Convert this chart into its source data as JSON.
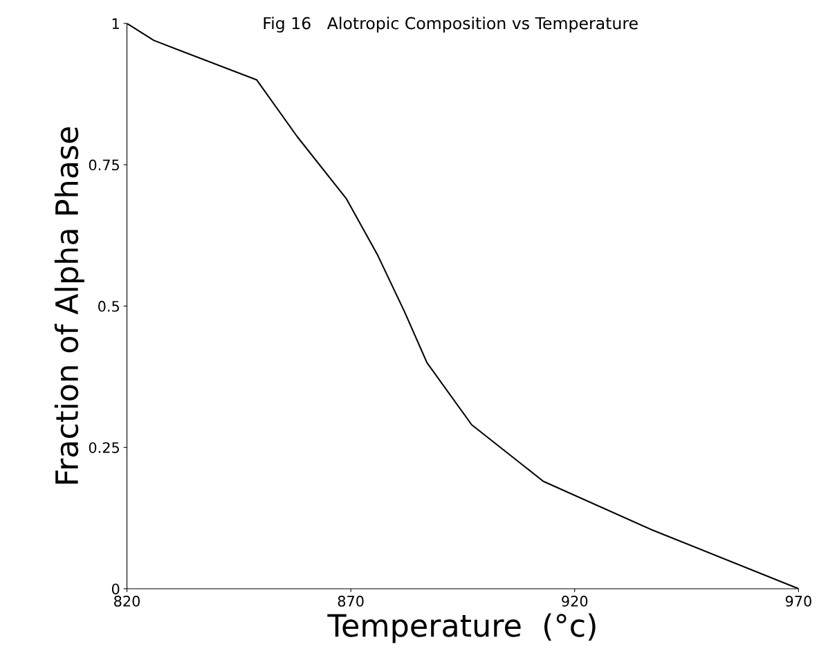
{
  "chart_data": {
    "type": "line",
    "title": "Fig 16   Alotropic Composition vs Temperature",
    "xlabel": "Temperature  (°c)",
    "ylabel": "Fraction of Alpha Phase",
    "x": [
      820,
      826,
      849,
      858,
      869,
      876,
      882,
      887,
      897,
      913,
      937,
      970
    ],
    "series": [
      {
        "color": "#000000",
        "values": [
          1.0,
          0.97,
          0.9,
          0.8,
          0.69,
          0.59,
          0.49,
          0.4,
          0.29,
          0.19,
          0.105,
          0.0
        ]
      }
    ],
    "xlim": [
      820,
      970
    ],
    "ylim": [
      0,
      1
    ],
    "xticks": [
      820,
      870,
      920,
      970
    ],
    "yticks": [
      0,
      0.25,
      0.5,
      0.75,
      1
    ],
    "grid": false,
    "legend": false
  }
}
